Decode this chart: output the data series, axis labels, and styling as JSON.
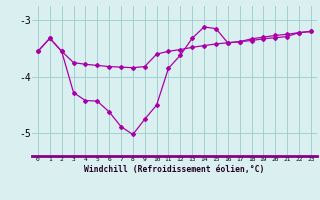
{
  "line1_x": [
    0,
    1,
    2,
    3,
    4,
    5,
    6,
    7,
    8,
    9,
    10,
    11,
    12,
    13,
    14,
    15,
    16,
    17,
    18,
    19,
    20,
    21,
    22,
    23
  ],
  "line1_y": [
    -3.55,
    -3.32,
    -3.55,
    -3.75,
    -3.78,
    -3.8,
    -3.82,
    -3.83,
    -3.84,
    -3.82,
    -3.6,
    -3.55,
    -3.52,
    -3.48,
    -3.45,
    -3.42,
    -3.4,
    -3.38,
    -3.36,
    -3.33,
    -3.31,
    -3.29,
    -3.22,
    -3.2
  ],
  "line2_x": [
    0,
    1,
    2,
    3,
    4,
    5,
    6,
    7,
    8,
    9,
    10,
    11,
    12,
    13,
    14,
    15,
    16,
    17,
    18,
    19,
    20,
    21,
    22,
    23
  ],
  "line2_y": [
    -3.55,
    -3.32,
    -3.55,
    -4.28,
    -4.42,
    -4.43,
    -4.62,
    -4.88,
    -5.02,
    -4.75,
    -4.5,
    -3.85,
    -3.62,
    -3.32,
    -3.12,
    -3.15,
    -3.4,
    -3.38,
    -3.33,
    -3.3,
    -3.27,
    -3.25,
    -3.22,
    -3.2
  ],
  "bg_color": "#daf0f0",
  "grid_color": "#99cccc",
  "line_color": "#aa00aa",
  "ylim": [
    -5.4,
    -2.75
  ],
  "xlim": [
    -0.5,
    23.5
  ],
  "yticks": [
    -5,
    -4,
    -3
  ],
  "xtick_labels": [
    "0",
    "1",
    "2",
    "3",
    "4",
    "5",
    "6",
    "7",
    "8",
    "9",
    "10",
    "11",
    "12",
    "13",
    "14",
    "15",
    "16",
    "17",
    "18",
    "19",
    "20",
    "21",
    "22",
    "23"
  ],
  "xlabel": "Windchill (Refroidissement éolien,°C)",
  "marker": "D",
  "markersize": 2.0,
  "linewidth": 0.9
}
